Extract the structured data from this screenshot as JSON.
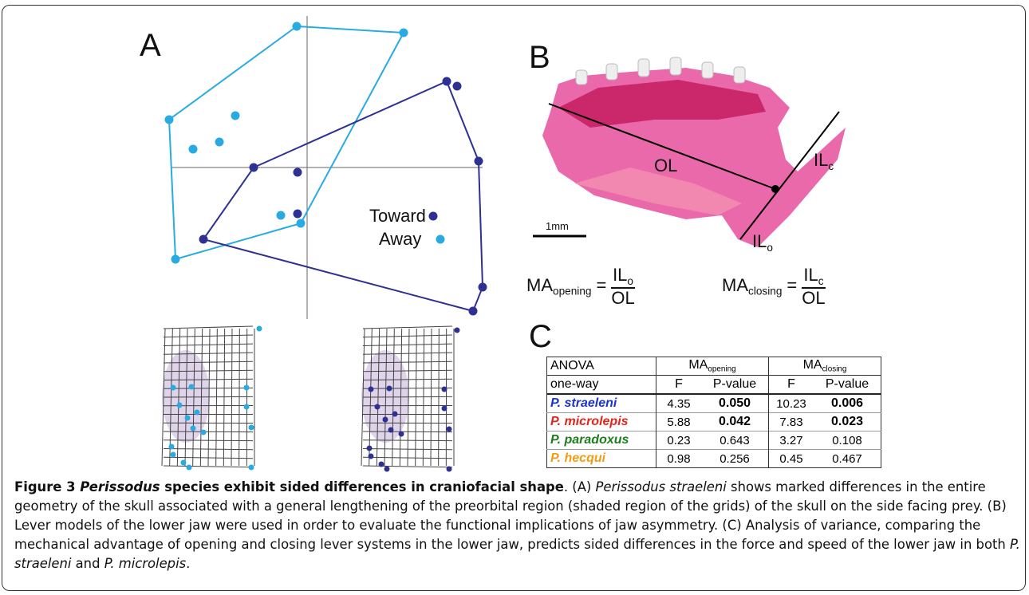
{
  "panel_a": {
    "label": "A",
    "legend": [
      {
        "name": "Toward",
        "color": "#2e3192"
      },
      {
        "name": "Away",
        "color": "#29abe2"
      }
    ]
  },
  "panel_b": {
    "label": "B",
    "lever_labels": {
      "ol": "OL",
      "il_c": {
        "main": "IL",
        "sub": "c"
      },
      "il_o": {
        "main": "IL",
        "sub": "o"
      }
    },
    "scale_bar": "1mm",
    "formulas": [
      {
        "lhs": {
          "main": "MA",
          "sub": "opening"
        },
        "eq": "=",
        "num": {
          "main": "IL",
          "sub": "o"
        },
        "den": "OL"
      },
      {
        "lhs": {
          "main": "MA",
          "sub": "closing"
        },
        "eq": "=",
        "num": {
          "main": "IL",
          "sub": "c"
        },
        "den": "OL"
      }
    ]
  },
  "panel_c": {
    "label": "C",
    "table": {
      "header": [
        [
          "ANOVA",
          {
            "main": "MA",
            "sub": "opening"
          },
          {
            "main": "MA",
            "sub": "closing"
          }
        ],
        [
          "one-way",
          "F",
          "P-value",
          "F",
          "P-value"
        ]
      ],
      "rows": [
        {
          "species": "P. straeleni",
          "color": "#1c35c9",
          "cells": [
            "4.35",
            "0.050",
            "10.23",
            "0.006"
          ],
          "bold": [
            false,
            true,
            false,
            true
          ]
        },
        {
          "species": "P. microlepis",
          "color": "#e3261b",
          "cells": [
            "5.88",
            "0.042",
            "7.83",
            "0.023"
          ],
          "bold": [
            false,
            true,
            false,
            true
          ]
        },
        {
          "species": "P. paradoxus",
          "color": "#1e7d1e",
          "cells": [
            "0.23",
            "0.643",
            "3.27",
            "0.108"
          ],
          "bold": [
            false,
            false,
            false,
            false
          ]
        },
        {
          "species": "P. hecqui",
          "color": "#f39c12",
          "cells": [
            "0.98",
            "0.256",
            "0.45",
            "0.467"
          ],
          "bold": [
            false,
            false,
            false,
            false
          ]
        }
      ]
    }
  },
  "caption": [
    {
      "text": "Figure 3 ",
      "style": "bold"
    },
    {
      "text": "Perissodus",
      "style": "bold-italic"
    },
    {
      "text": " species exhibit sided differences in craniofacial shape",
      "style": "bold"
    },
    {
      "text": ". (A) ",
      "style": "normal"
    },
    {
      "text": "Perissodus straeleni",
      "style": "italic"
    },
    {
      "text": " shows marked differences in the entire geometry of the skull associated with a general lengthening of the preorbital region (shaded region of the grids) of the skull on the side facing prey. (B) Lever models of the lower jaw were used in order to evaluate the functional implications of jaw asymmetry. (C) Analysis of variance, comparing the mechanical advantage of opening and closing lever systems in the lower jaw, predicts sided differences in the force and speed of the lower jaw in both ",
      "style": "normal"
    },
    {
      "text": "P. straeleni",
      "style": "italic"
    },
    {
      "text": " and ",
      "style": "normal"
    },
    {
      "text": "P. microlepis",
      "style": "italic"
    },
    {
      "text": ".",
      "style": "normal"
    }
  ]
}
